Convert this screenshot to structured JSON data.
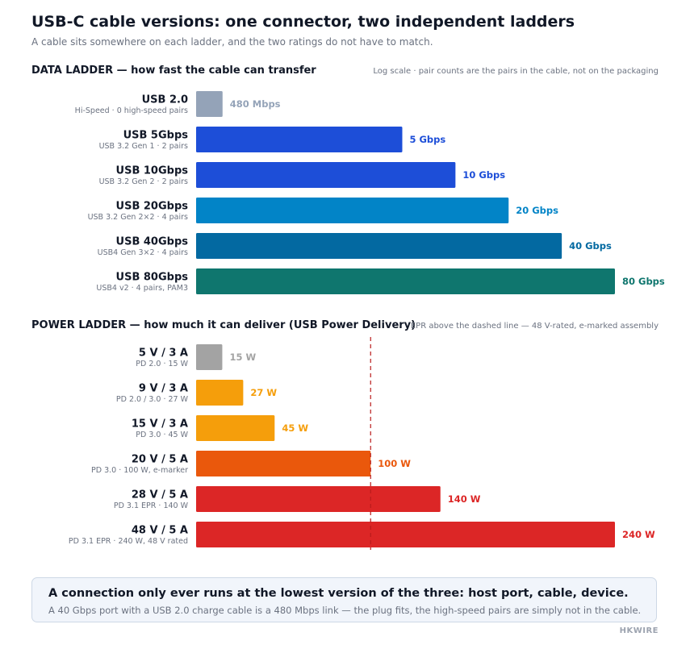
{
  "title": "USB-C cable versions: one connector, two independent ladders",
  "subtitle": "A cable sits somewhere on each ladder, and the two ratings do not have to match.",
  "data_section": {
    "heading": "DATA LADDER — how fast the cable can transfer",
    "note": "Log scale · pair counts are the pairs in the cable, not on the packaging"
  },
  "power_section": {
    "heading": "POWER LADDER — how much it can deliver (USB Power Delivery)",
    "note": "EPR above the dashed line — 48 V-rated, e-marked assembly"
  },
  "callout": {
    "headline": "A connection only ever runs at the lowest version of the three: host port, cable, device.",
    "body": "A 40 Gbps port with a USB 2.0 charge cable is a 480 Mbps link — the plug fits, the high-speed pairs are simply not in the cable."
  },
  "brand": "HKWIRE",
  "chart_data": [
    {
      "type": "bar",
      "orientation": "horizontal",
      "scale": "log",
      "unit": "Mbps",
      "categories": [
        "USB 2.0",
        "USB 5Gbps",
        "USB 10Gbps",
        "USB 20Gbps",
        "USB 40Gbps",
        "USB 80Gbps"
      ],
      "sublabels": [
        "Hi-Speed · 0 high-speed pairs",
        "USB 3.2 Gen 1 · 2 pairs",
        "USB 3.2 Gen 2 · 2 pairs",
        "USB 3.2 Gen 2×2 · 4 pairs",
        "USB4 Gen 3×2 · 4 pairs",
        "USB4 v2 · 4 pairs, PAM3"
      ],
      "values": [
        480,
        5000,
        10000,
        20000,
        40000,
        80000
      ],
      "value_labels": [
        "480 Mbps",
        "5 Gbps",
        "10 Gbps",
        "20 Gbps",
        "40 Gbps",
        "80 Gbps"
      ],
      "colors": [
        "#94a3b8",
        "#1d4ed8",
        "#1d4ed8",
        "#0284c7",
        "#0369a1",
        "#0f766e"
      ],
      "label_colors": [
        "#94a3b8",
        "#1d4ed8",
        "#1d4ed8",
        "#0284c7",
        "#0369a1",
        "#0f766e"
      ]
    },
    {
      "type": "bar",
      "orientation": "horizontal",
      "scale": "linear",
      "unit": "W",
      "xlim": [
        0,
        240
      ],
      "categories": [
        "5 V / 3 A",
        "9 V / 3 A",
        "15 V / 3 A",
        "20 V / 5 A",
        "28 V / 5 A",
        "48 V / 5 A"
      ],
      "sublabels": [
        "PD 2.0 · 15 W",
        "PD 2.0 / 3.0 · 27 W",
        "PD 3.0 · 45 W",
        "PD 3.0 · 100 W, e-marker",
        "PD 3.1 EPR · 140 W",
        "PD 3.1 EPR · 240 W, 48 V rated"
      ],
      "values": [
        15,
        27,
        45,
        100,
        140,
        240
      ],
      "value_labels": [
        "15 W",
        "27 W",
        "45 W",
        "100 W",
        "140 W",
        "240 W"
      ],
      "colors": [
        "#a3a3a3",
        "#f59e0b",
        "#f59e0b",
        "#ea580c",
        "#dc2626",
        "#dc2626"
      ],
      "label_colors": [
        "#a3a3a3",
        "#f59e0b",
        "#f59e0b",
        "#ea580c",
        "#dc2626",
        "#dc2626"
      ],
      "threshold": 100
    }
  ]
}
